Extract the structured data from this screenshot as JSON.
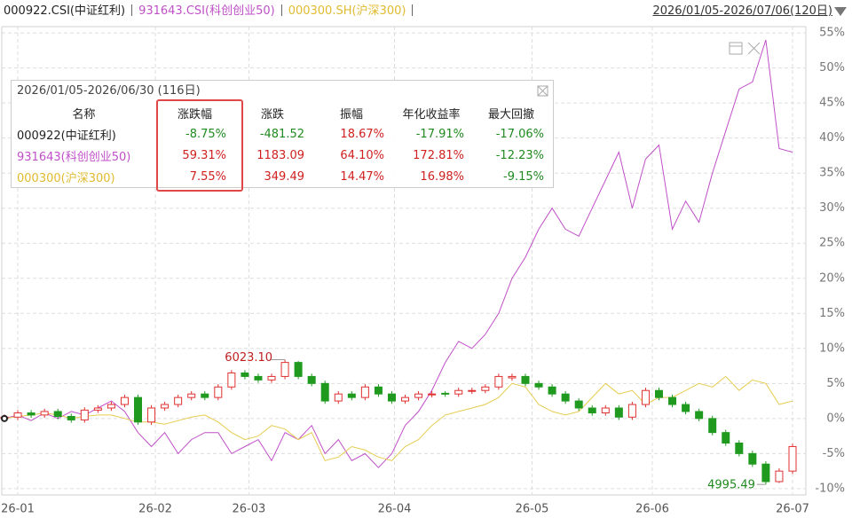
{
  "header": {
    "range": "2026/01/05-2026/07/06(120日)"
  },
  "chart_data": {
    "type": "candlestick",
    "candles": {
      "name": "000922.CSI(中证红利)",
      "color": "#222222",
      "up_color": "#e03030",
      "down_color": "#1f9a1f",
      "ohlc": [
        [
          0,
          0.2,
          -0.4,
          0.6
        ],
        [
          0.2,
          0.8,
          -0.2,
          1.2
        ],
        [
          0.8,
          0.5,
          0.1,
          1.2
        ],
        [
          0.5,
          1.0,
          0.1,
          1.4
        ],
        [
          1.0,
          0.3,
          -0.1,
          1.4
        ],
        [
          0.3,
          -0.2,
          -0.6,
          0.7
        ],
        [
          -0.2,
          1.2,
          -0.6,
          1.6
        ],
        [
          1.2,
          1.5,
          0.8,
          1.9
        ],
        [
          1.5,
          2.0,
          1.1,
          2.4
        ],
        [
          2.0,
          3.0,
          1.6,
          3.4
        ],
        [
          3.0,
          -0.5,
          -0.9,
          3.4
        ],
        [
          -0.5,
          1.5,
          -0.9,
          1.9
        ],
        [
          1.5,
          2.0,
          1.1,
          2.4
        ],
        [
          2.0,
          3.0,
          1.6,
          3.4
        ],
        [
          3.0,
          3.5,
          2.6,
          3.9
        ],
        [
          3.5,
          3.0,
          2.6,
          3.9
        ],
        [
          3.0,
          4.5,
          2.6,
          4.9
        ],
        [
          4.5,
          6.5,
          4.1,
          6.9
        ],
        [
          6.5,
          6.0,
          5.6,
          6.9
        ],
        [
          6.0,
          5.5,
          5.1,
          6.4
        ],
        [
          5.5,
          6.0,
          5.1,
          6.4
        ],
        [
          6.0,
          8.0,
          5.6,
          8.4
        ],
        [
          8.0,
          6.0,
          5.6,
          8.2
        ],
        [
          6.0,
          5.0,
          4.6,
          6.4
        ],
        [
          5.0,
          2.5,
          2.1,
          5.4
        ],
        [
          2.5,
          3.5,
          2.1,
          3.9
        ],
        [
          3.5,
          3.0,
          2.6,
          3.9
        ],
        [
          3.0,
          4.5,
          2.6,
          4.9
        ],
        [
          4.5,
          3.5,
          3.1,
          4.9
        ],
        [
          3.5,
          2.5,
          2.1,
          3.9
        ],
        [
          2.5,
          3.0,
          2.1,
          3.4
        ],
        [
          3.0,
          3.5,
          2.6,
          3.9
        ],
        [
          3.4,
          3.5,
          3.0,
          3.9
        ],
        [
          3.6,
          3.5,
          3.1,
          3.9
        ],
        [
          3.5,
          4.0,
          3.1,
          4.4
        ],
        [
          3.9,
          4.0,
          3.5,
          4.4
        ],
        [
          4.0,
          4.5,
          3.6,
          4.9
        ],
        [
          4.5,
          6.0,
          4.1,
          6.4
        ],
        [
          5.8,
          6.0,
          5.4,
          6.4
        ],
        [
          6.0,
          5.0,
          4.6,
          6.4
        ],
        [
          5.0,
          4.5,
          4.1,
          5.4
        ],
        [
          4.5,
          3.5,
          3.1,
          4.9
        ],
        [
          3.5,
          2.5,
          2.1,
          3.9
        ],
        [
          2.5,
          1.5,
          1.1,
          2.9
        ],
        [
          1.5,
          0.8,
          0.4,
          1.9
        ],
        [
          0.8,
          1.5,
          0.4,
          1.9
        ],
        [
          1.5,
          0.2,
          -0.2,
          1.9
        ],
        [
          0.2,
          2.0,
          -0.2,
          2.4
        ],
        [
          2.0,
          4.0,
          1.6,
          4.4
        ],
        [
          4.0,
          3.0,
          2.6,
          4.4
        ],
        [
          3.0,
          2.0,
          1.6,
          3.4
        ],
        [
          2.0,
          1.0,
          0.6,
          2.4
        ],
        [
          1.0,
          0.0,
          -0.4,
          1.4
        ],
        [
          0.0,
          -2.0,
          -2.4,
          0.4
        ],
        [
          -2.0,
          -3.5,
          -3.9,
          -1.6
        ],
        [
          -3.5,
          -5.0,
          -5.4,
          -3.1
        ],
        [
          -5.0,
          -6.5,
          -6.9,
          -4.6
        ],
        [
          -6.5,
          -9.0,
          -9.4,
          -6.1
        ],
        [
          -9.0,
          -7.5,
          -9.2,
          -7.1
        ],
        [
          -7.5,
          -4.0,
          -7.9,
          -3.6
        ]
      ],
      "high_label": "6023.10",
      "low_label": "4995.49"
    },
    "series": [
      {
        "name": "931643.CSI(科创创业50)",
        "color": "#c050c8",
        "values": [
          0,
          0.5,
          -0.3,
          0.8,
          0,
          1,
          0.5,
          1.5,
          2.5,
          1,
          -2,
          -4,
          -2,
          -5,
          -3,
          -2,
          -2,
          -5,
          -4,
          -3,
          -6,
          -2,
          -3,
          -1,
          -5,
          -3,
          -6,
          -5,
          -7,
          -5,
          -1,
          1,
          4,
          8,
          11,
          10,
          12,
          15,
          20,
          23,
          27,
          30,
          27,
          26,
          30,
          34,
          38,
          30,
          37,
          39,
          27,
          31,
          28,
          35,
          41,
          47,
          48,
          54,
          38.5,
          38
        ]
      },
      {
        "name": "000300.SH(沪深300)",
        "color": "#e6cc50",
        "values": [
          0,
          0.3,
          0.5,
          0.8,
          0.5,
          0,
          0.3,
          0.5,
          0.5,
          0,
          -0.5,
          -0.5,
          -0.8,
          -0.3,
          0.2,
          0.5,
          -0.5,
          -2,
          -3,
          -2.5,
          -1,
          -1.5,
          -3,
          -2,
          -6,
          -5.5,
          -4,
          -4.5,
          -5.5,
          -6,
          -4,
          -3,
          -1,
          0.5,
          1,
          1.5,
          2,
          3,
          5,
          4.5,
          2,
          1,
          0.5,
          1,
          3,
          5,
          3.5,
          4,
          2,
          3,
          3,
          4,
          5,
          4.5,
          6,
          4,
          5.5,
          5,
          2,
          2.5
        ]
      }
    ],
    "xticks": [
      {
        "value": 1,
        "label": "26-01"
      },
      {
        "value": 11.3,
        "label": "26-02"
      },
      {
        "value": 18.3,
        "label": "26-03"
      },
      {
        "value": 29.2,
        "label": "26-04"
      },
      {
        "value": 39.5,
        "label": "26-05"
      },
      {
        "value": 48.5,
        "label": "26-06"
      },
      {
        "value": 59,
        "label": "26-07"
      }
    ],
    "ylim": [
      -10.9,
      55.9
    ],
    "yticks": [
      {
        "value": -10,
        "label": "-10%"
      },
      {
        "value": -5,
        "label": "-5%"
      },
      {
        "value": 0,
        "label": "0%"
      },
      {
        "value": 5,
        "label": "5%"
      },
      {
        "value": 10,
        "label": "10%"
      },
      {
        "value": 15,
        "label": "15%"
      },
      {
        "value": 20,
        "label": "20%"
      },
      {
        "value": 25,
        "label": "25%"
      },
      {
        "value": 30,
        "label": "30%"
      },
      {
        "value": 35,
        "label": "35%"
      },
      {
        "value": 40,
        "label": "40%"
      },
      {
        "value": 45,
        "label": "45%"
      },
      {
        "value": 50,
        "label": "50%"
      },
      {
        "value": 55,
        "label": "55%"
      }
    ],
    "grid": true
  },
  "stats_table": {
    "title": "2026/01/05-2026/06/30 (116日)",
    "columns": [
      "名称",
      "涨跌幅",
      "涨跌",
      "振幅",
      "年化收益率",
      "最大回撤"
    ],
    "rows": [
      [
        "000922(中证红利)",
        "-8.75%",
        "-481.52",
        "18.67%",
        "-17.91%",
        "-17.06%"
      ],
      [
        "931643(科创创业50)",
        "59.31%",
        "1183.09",
        "64.10%",
        "172.81%",
        "-12.23%"
      ],
      [
        "000300(沪深300)",
        "7.55%",
        "349.49",
        "14.47%",
        "16.98%",
        "-9.15%"
      ]
    ]
  }
}
